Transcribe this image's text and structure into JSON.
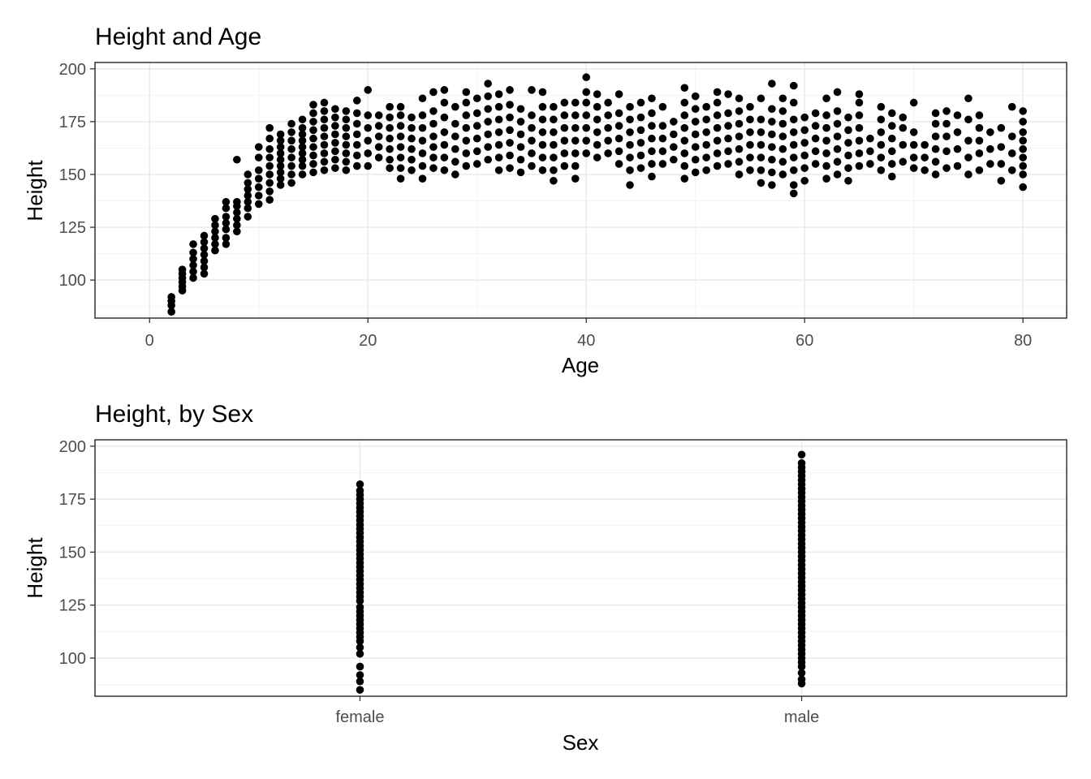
{
  "chart_data": [
    {
      "type": "scatter",
      "title": "Height and Age",
      "xlabel": "Age",
      "ylabel": "Height",
      "xlim": [
        -5,
        84
      ],
      "ylim": [
        82,
        203
      ],
      "xticks": [
        0,
        20,
        40,
        60,
        80
      ],
      "yticks": [
        100,
        125,
        150,
        175,
        200
      ],
      "grid": true,
      "point_color": "#000000",
      "points": {
        "2": [
          85,
          88,
          90,
          92
        ],
        "3": [
          95,
          97,
          99,
          101,
          103,
          105
        ],
        "4": [
          101,
          104,
          107,
          110,
          113,
          117
        ],
        "5": [
          103,
          106,
          109,
          112,
          115,
          118,
          121
        ],
        "6": [
          114,
          117,
          120,
          123,
          126,
          129
        ],
        "7": [
          117,
          120,
          124,
          127,
          130,
          134,
          137
        ],
        "8": [
          123,
          126,
          129,
          132,
          135,
          137,
          157
        ],
        "9": [
          130,
          134,
          137,
          140,
          143,
          146,
          150
        ],
        "10": [
          136,
          140,
          144,
          148,
          152,
          158,
          163
        ],
        "11": [
          138,
          142,
          146,
          150,
          154,
          158,
          162,
          167,
          172
        ],
        "12": [
          145,
          148,
          151,
          154,
          157,
          160,
          163,
          166,
          169
        ],
        "13": [
          146,
          150,
          154,
          158,
          162,
          166,
          170,
          174
        ],
        "14": [
          150,
          154,
          157,
          160,
          163,
          166,
          169,
          172,
          176
        ],
        "15": [
          151,
          155,
          159,
          163,
          167,
          171,
          175,
          179,
          183
        ],
        "16": [
          152,
          156,
          160,
          164,
          168,
          172,
          176,
          180,
          184
        ],
        "17": [
          153,
          157,
          161,
          165,
          169,
          173,
          177,
          181
        ],
        "18": [
          152,
          156,
          160,
          164,
          168,
          172,
          176,
          180
        ],
        "19": [
          154,
          159,
          164,
          169,
          174,
          179,
          185
        ],
        "20": [
          154,
          160,
          166,
          172,
          178,
          190
        ],
        "21": [
          158,
          163,
          168,
          173,
          178
        ],
        "22": [
          153,
          157,
          162,
          167,
          172,
          177,
          182
        ],
        "23": [
          148,
          153,
          158,
          163,
          168,
          173,
          178,
          182
        ],
        "24": [
          152,
          157,
          162,
          167,
          172,
          177
        ],
        "25": [
          148,
          154,
          160,
          166,
          172,
          178,
          186
        ],
        "26": [
          153,
          158,
          163,
          168,
          174,
          180,
          189
        ],
        "27": [
          152,
          158,
          164,
          170,
          177,
          184,
          190
        ],
        "28": [
          150,
          156,
          162,
          168,
          174,
          182
        ],
        "29": [
          154,
          160,
          166,
          172,
          178,
          184,
          189
        ],
        "30": [
          155,
          161,
          167,
          173,
          179,
          186
        ],
        "31": [
          157,
          163,
          169,
          175,
          181,
          187,
          193
        ],
        "32": [
          152,
          158,
          164,
          170,
          176,
          182,
          188
        ],
        "33": [
          153,
          159,
          165,
          171,
          177,
          183,
          190
        ],
        "34": [
          151,
          157,
          163,
          169,
          175,
          181
        ],
        "35": [
          154,
          160,
          166,
          172,
          178,
          190
        ],
        "36": [
          152,
          158,
          164,
          170,
          176,
          182,
          189
        ],
        "37": [
          147,
          152,
          158,
          164,
          170,
          176,
          182
        ],
        "38": [
          154,
          160,
          166,
          172,
          178,
          184
        ],
        "39": [
          148,
          154,
          160,
          166,
          172,
          178,
          184
        ],
        "40": [
          160,
          166,
          172,
          178,
          184,
          189,
          196
        ],
        "41": [
          158,
          164,
          170,
          176,
          182,
          188
        ],
        "42": [
          160,
          166,
          172,
          178,
          184
        ],
        "43": [
          155,
          161,
          167,
          173,
          179,
          188
        ],
        "44": [
          145,
          152,
          158,
          164,
          170,
          176,
          182
        ],
        "45": [
          153,
          159,
          165,
          171,
          177,
          184
        ],
        "46": [
          149,
          155,
          161,
          167,
          173,
          179,
          186
        ],
        "47": [
          155,
          161,
          167,
          173,
          182
        ],
        "48": [
          157,
          163,
          169,
          175
        ],
        "49": [
          148,
          154,
          160,
          166,
          172,
          178,
          184,
          191
        ],
        "50": [
          151,
          157,
          163,
          169,
          175,
          181,
          187
        ],
        "51": [
          152,
          158,
          164,
          170,
          176,
          182
        ],
        "52": [
          154,
          160,
          166,
          172,
          178,
          184,
          189
        ],
        "53": [
          155,
          161,
          167,
          173,
          179,
          188
        ],
        "54": [
          150,
          156,
          162,
          168,
          174,
          180,
          186
        ],
        "55": [
          152,
          158,
          164,
          170,
          176,
          182
        ],
        "56": [
          146,
          152,
          158,
          164,
          170,
          176,
          186
        ],
        "57": [
          145,
          151,
          157,
          163,
          169,
          175,
          181,
          193
        ],
        "58": [
          150,
          156,
          162,
          168,
          174,
          180,
          186
        ],
        "59": [
          141,
          145,
          152,
          158,
          164,
          170,
          176,
          184,
          192
        ],
        "60": [
          147,
          153,
          159,
          165,
          171,
          177
        ],
        "61": [
          155,
          161,
          167,
          173,
          179
        ],
        "62": [
          148,
          154,
          160,
          166,
          172,
          178,
          186
        ],
        "63": [
          150,
          156,
          162,
          168,
          174,
          180,
          189
        ],
        "64": [
          147,
          153,
          159,
          165,
          171,
          177
        ],
        "65": [
          154,
          160,
          166,
          172,
          178,
          184,
          188
        ],
        "66": [
          155,
          161,
          167
        ],
        "67": [
          152,
          158,
          164,
          170,
          176,
          182
        ],
        "68": [
          149,
          155,
          161,
          167,
          173,
          179
        ],
        "69": [
          156,
          164,
          172,
          177
        ],
        "70": [
          153,
          158,
          164,
          170,
          184
        ],
        "71": [
          152,
          158,
          164
        ],
        "72": [
          150,
          156,
          162,
          168,
          174,
          179
        ],
        "73": [
          153,
          161,
          168,
          174,
          180
        ],
        "74": [
          154,
          162,
          170,
          178
        ],
        "75": [
          150,
          158,
          166,
          176,
          186
        ],
        "76": [
          152,
          160,
          166,
          172,
          178
        ],
        "77": [
          155,
          162,
          170
        ],
        "78": [
          147,
          155,
          163,
          172
        ],
        "79": [
          152,
          160,
          168,
          182
        ],
        "80": [
          144,
          150,
          154,
          158,
          162,
          166,
          170,
          175,
          180
        ]
      }
    },
    {
      "type": "scatter",
      "title": "Height, by Sex",
      "xlabel": "Sex",
      "ylabel": "Height",
      "categories": [
        "female",
        "male"
      ],
      "ylim": [
        82,
        203
      ],
      "yticks": [
        100,
        125,
        150,
        175,
        200
      ],
      "grid": true,
      "point_color": "#000000",
      "series": [
        {
          "category": "female",
          "values": [
            85,
            89,
            92,
            96,
            102,
            105,
            108,
            110,
            112,
            114,
            116,
            118,
            120,
            122,
            124,
            127,
            129,
            131,
            133,
            135,
            137,
            139,
            141,
            143,
            145,
            147,
            149,
            151,
            153,
            155,
            157,
            159,
            161,
            163,
            165,
            167,
            169,
            171,
            173,
            175,
            177,
            179,
            182
          ]
        },
        {
          "category": "male",
          "values": [
            88,
            90,
            93,
            96,
            98,
            100,
            102,
            104,
            106,
            108,
            110,
            112,
            114,
            116,
            118,
            120,
            122,
            124,
            126,
            128,
            130,
            132,
            134,
            136,
            138,
            140,
            142,
            144,
            146,
            148,
            150,
            152,
            154,
            156,
            158,
            160,
            162,
            164,
            166,
            168,
            170,
            172,
            174,
            176,
            178,
            180,
            182,
            184,
            186,
            188,
            190,
            192,
            196
          ]
        }
      ]
    }
  ]
}
